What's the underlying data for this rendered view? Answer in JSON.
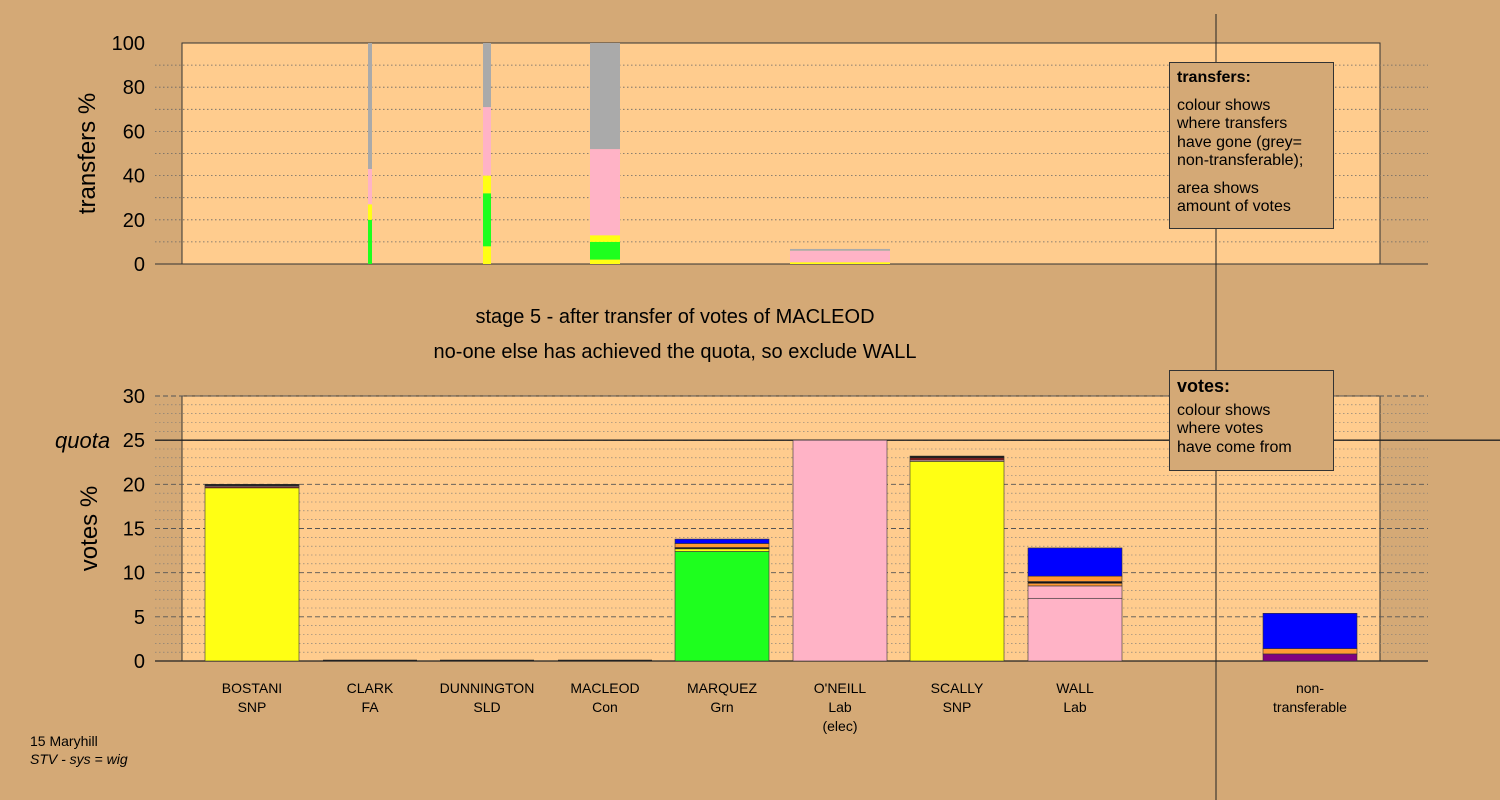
{
  "chart_data": [
    {
      "type": "bar",
      "title": "transfers",
      "ylabel": "transfers %",
      "ylim": [
        0,
        100
      ],
      "yticks": [
        "0",
        "20",
        "40",
        "60",
        "80",
        "100"
      ],
      "grid": true,
      "columns": [
        {
          "category": "CLARK",
          "segments": [
            {
              "color": "#1eff1e",
              "value": 20
            },
            {
              "color": "#ffff14",
              "value": 7
            },
            {
              "color": "#ffb3c6",
              "value": 16
            },
            {
              "color": "#aaaaaa",
              "value": 57
            }
          ]
        },
        {
          "category": "DUNNINGTON",
          "segments": [
            {
              "color": "#ffff14",
              "value": 8
            },
            {
              "color": "#1eff1e",
              "value": 24
            },
            {
              "color": "#ffff14",
              "value": 8
            },
            {
              "color": "#ffb3c6",
              "value": 31
            },
            {
              "color": "#aaaaaa",
              "value": 29
            }
          ]
        },
        {
          "category": "MACLEOD",
          "segments": [
            {
              "color": "#ffff14",
              "value": 2
            },
            {
              "color": "#1eff1e",
              "value": 8
            },
            {
              "color": "#ffff14",
              "value": 3
            },
            {
              "color": "#ffb3c6",
              "value": 39
            },
            {
              "color": "#aaaaaa",
              "value": 48
            }
          ]
        },
        {
          "category": "O'NEILL",
          "segments": [
            {
              "color": "#ffff14",
              "value": 0.8
            },
            {
              "color": "#ffb3c6",
              "value": 5.2
            },
            {
              "color": "#aaaaaa",
              "value": 0.8
            }
          ]
        }
      ]
    },
    {
      "type": "bar",
      "title": "votes",
      "ylabel": "votes %",
      "ylim": [
        0,
        30
      ],
      "yticks": [
        "0",
        "5",
        "10",
        "15",
        "20",
        "25",
        "30"
      ],
      "quota": 25,
      "quota_label": "quota",
      "grid": true,
      "categories": [
        {
          "name": "BOSTANI",
          "sub": [
            "SNP"
          ]
        },
        {
          "name": "CLARK",
          "sub": [
            "FA"
          ]
        },
        {
          "name": "DUNNINGTON",
          "sub": [
            "SLD"
          ]
        },
        {
          "name": "MACLEOD",
          "sub": [
            "Con"
          ]
        },
        {
          "name": "MARQUEZ",
          "sub": [
            "Grn"
          ]
        },
        {
          "name": "O'NEILL",
          "sub": [
            "Lab",
            "(elec)"
          ]
        },
        {
          "name": "SCALLY",
          "sub": [
            "SNP"
          ]
        },
        {
          "name": "WALL",
          "sub": [
            "Lab"
          ]
        },
        {
          "name": "",
          "sub": []
        },
        {
          "name": "non-",
          "sub": [
            "transferable"
          ]
        }
      ],
      "columns": [
        {
          "category": "BOSTANI",
          "segments": [
            {
              "color": "#ffff14",
              "value": 19.6
            },
            {
              "color": "#8b1a1a",
              "value": 0.15
            },
            {
              "color": "#ffb3c6",
              "value": 0.1
            },
            {
              "color": "#111111",
              "value": 0.15
            }
          ]
        },
        {
          "category": "CLARK",
          "segments": []
        },
        {
          "category": "DUNNINGTON",
          "segments": []
        },
        {
          "category": "MACLEOD",
          "segments": []
        },
        {
          "category": "MARQUEZ",
          "segments": [
            {
              "color": "#1eff1e",
              "value": 12.4
            },
            {
              "color": "#ffff14",
              "value": 0.3
            },
            {
              "color": "#111111",
              "value": 0.15
            },
            {
              "color": "#ff9933",
              "value": 0.45
            },
            {
              "color": "#0000ff",
              "value": 0.5
            }
          ]
        },
        {
          "category": "O'NEILL",
          "segments": [
            {
              "color": "#ffb3c6",
              "value": 25.0
            }
          ]
        },
        {
          "category": "SCALLY",
          "segments": [
            {
              "color": "#ffff14",
              "value": 22.6
            },
            {
              "color": "#ffb3c6",
              "value": 0.15
            },
            {
              "color": "#8b1a1a",
              "value": 0.25
            },
            {
              "color": "#111111",
              "value": 0.2
            }
          ]
        },
        {
          "category": "WALL",
          "segments": [
            {
              "color": "#ffb3c6",
              "value": 7.1
            },
            {
              "color": "#ffb3c6",
              "value": 1.4
            },
            {
              "color": "#ff9933",
              "value": 0.3
            },
            {
              "color": "#111111",
              "value": 0.2
            },
            {
              "color": "#ff9933",
              "value": 0.6
            },
            {
              "color": "#0000ff",
              "value": 3.2
            }
          ]
        },
        {
          "category": "",
          "segments": []
        },
        {
          "category": "non-transferable",
          "segments": [
            {
              "color": "#800080",
              "value": 0.8
            },
            {
              "color": "#ff9933",
              "value": 0.6
            },
            {
              "color": "#0000ff",
              "value": 4.0
            }
          ]
        }
      ]
    }
  ],
  "stage_text": {
    "line1": "stage 5 - after transfer of votes of MACLEOD",
    "line2": "no-one else has achieved the quota, so exclude WALL"
  },
  "legend_transfers": {
    "title": "transfers:",
    "lines1": [
      "colour shows",
      "where transfers",
      "have gone (grey=",
      "non-transferable);"
    ],
    "lines2": [
      "area shows",
      "amount of votes"
    ]
  },
  "legend_votes": {
    "title": "votes:",
    "lines": [
      "colour shows",
      "where votes",
      "have come from"
    ]
  },
  "footer": {
    "line1": "15 Maryhill",
    "line2": "STV - sys = wig"
  },
  "colors": {
    "background": "#d4a976",
    "plot_bg": "#ffcc8e",
    "grey": "#aaaaaa",
    "green": "#1eff1e",
    "yellow": "#ffff14",
    "pink": "#ffb3c6",
    "blue": "#0000ff",
    "orange": "#ff9933",
    "purple": "#800080"
  }
}
